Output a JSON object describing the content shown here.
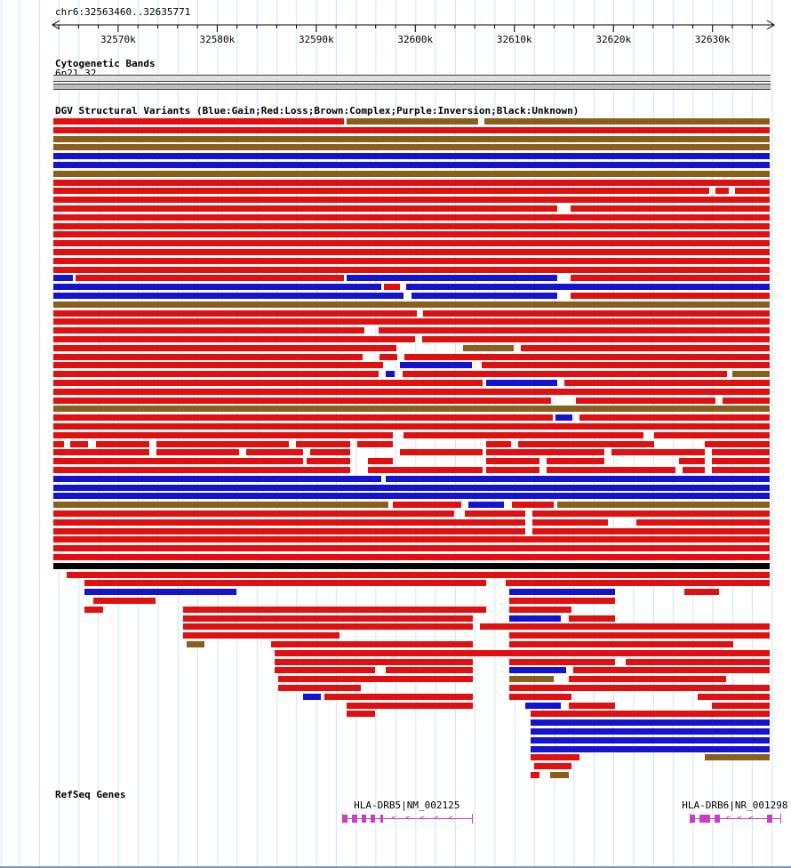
{
  "header": {
    "region": "chr6:32563460..32635771"
  },
  "tracks": {
    "cytoband": {
      "title": "Cytogenetic Bands",
      "band_label": "6p21.32"
    },
    "dgv": {
      "title": "DGV Structural Variants (Blue:Gain;Red:Loss;Brown:Complex;Purple:Inversion;Black:Unknown)"
    },
    "refseq": {
      "title": "RefSeq Genes"
    }
  },
  "colors": {
    "gain": "#1414d0",
    "loss": "#e01010",
    "complex": "#8a5f1e",
    "inversion": "#8800aa",
    "unknown": "#000000",
    "gene": "#c93ec9",
    "grid": "#cfe3f4",
    "band_fill": "#dedede",
    "band_edge": "#3c3c3c",
    "bottom_line": "#7d94cf"
  },
  "chart_data": {
    "type": "genome-tracks",
    "region": {
      "chrom": "chr6",
      "start": 32563460,
      "end": 32635771
    },
    "ruler": {
      "start": 32563460,
      "end": 32635771,
      "major_step": 10000,
      "minor_step": 2000,
      "major_labels": [
        "32570k",
        "32580k",
        "32590k",
        "32600k",
        "32610k",
        "32620k",
        "32630k"
      ]
    },
    "legend": {
      "blue": "Gain",
      "red": "Loss",
      "brown": "Complex",
      "purple": "Inversion",
      "black": "Unknown"
    },
    "rows": [
      [
        [
          0,
          40.6,
          "R"
        ],
        [
          40.9,
          59.3,
          "N"
        ],
        [
          60.2,
          100,
          "N"
        ]
      ],
      [
        [
          0,
          100,
          "R"
        ]
      ],
      [
        [
          0,
          100,
          "N"
        ]
      ],
      [
        [
          0,
          100,
          "N"
        ]
      ],
      [
        [
          0,
          100,
          "B"
        ]
      ],
      [
        [
          0,
          100,
          "B"
        ]
      ],
      [
        [
          0,
          100,
          "N"
        ]
      ],
      [
        [
          0,
          100,
          "R"
        ]
      ],
      [
        [
          0,
          91.6,
          "R"
        ],
        [
          92.4,
          94.3,
          "R"
        ],
        [
          95.1,
          100,
          "R"
        ]
      ],
      [
        [
          0,
          100,
          "R"
        ]
      ],
      [
        [
          0,
          70.3,
          "R"
        ],
        [
          72.2,
          100,
          "R"
        ]
      ],
      [
        [
          0,
          100,
          "R"
        ]
      ],
      [
        [
          0,
          100,
          "R"
        ]
      ],
      [
        [
          0,
          100,
          "R"
        ]
      ],
      [
        [
          0,
          100,
          "R"
        ]
      ],
      [
        [
          0,
          100,
          "R"
        ]
      ],
      [
        [
          0,
          100,
          "R"
        ]
      ],
      [
        [
          0,
          100,
          "R"
        ]
      ],
      [
        [
          0,
          2.7,
          "B"
        ],
        [
          3.1,
          40.6,
          "R"
        ],
        [
          41,
          70.3,
          "B"
        ],
        [
          72.2,
          100,
          "R"
        ]
      ],
      [
        [
          0,
          45.8,
          "B"
        ],
        [
          46.2,
          48.4,
          "R"
        ],
        [
          49.2,
          100,
          "B"
        ]
      ],
      [
        [
          0,
          48.9,
          "B"
        ],
        [
          50,
          70.3,
          "B"
        ],
        [
          72.2,
          100,
          "R"
        ]
      ],
      [
        [
          0,
          100,
          "N"
        ]
      ],
      [
        [
          0,
          50.7,
          "R"
        ],
        [
          51.6,
          100,
          "R"
        ]
      ],
      [
        [
          0,
          100,
          "R"
        ]
      ],
      [
        [
          0,
          43.4,
          "R"
        ],
        [
          45.4,
          100,
          "R"
        ]
      ],
      [
        [
          0,
          50.5,
          "R"
        ],
        [
          51.5,
          100,
          "R"
        ]
      ],
      [
        [
          0,
          47.9,
          "R"
        ],
        [
          57.2,
          64.3,
          "N"
        ],
        [
          65.3,
          100,
          "R"
        ]
      ],
      [
        [
          0,
          43.2,
          "R"
        ],
        [
          45.5,
          48,
          "R"
        ],
        [
          49,
          100,
          "R"
        ]
      ],
      [
        [
          0,
          46,
          "R"
        ],
        [
          48.4,
          58.4,
          "B"
        ],
        [
          59.8,
          100,
          "R"
        ]
      ],
      [
        [
          0,
          45.4,
          "R"
        ],
        [
          46.4,
          47.6,
          "B"
        ],
        [
          48.8,
          94,
          "R"
        ],
        [
          94.8,
          100,
          "N"
        ]
      ],
      [
        [
          0,
          59.9,
          "R"
        ],
        [
          60.4,
          70.4,
          "B"
        ],
        [
          71.4,
          100,
          "R"
        ]
      ],
      [
        [
          0,
          100,
          "R"
        ]
      ],
      [
        [
          0,
          69.5,
          "R"
        ],
        [
          72.9,
          92.4,
          "R"
        ],
        [
          93.4,
          100,
          "R"
        ]
      ],
      [
        [
          0,
          100,
          "N"
        ]
      ],
      [
        [
          0,
          69.7,
          "R"
        ],
        [
          70.1,
          72.4,
          "B"
        ],
        [
          73.4,
          100,
          "R"
        ]
      ],
      [
        [
          0,
          100,
          "R"
        ]
      ],
      [
        [
          0,
          47.4,
          "R"
        ],
        [
          48.9,
          82.4,
          "R"
        ],
        [
          83.9,
          100,
          "R"
        ]
      ],
      [
        [
          0,
          1.5,
          "R"
        ],
        [
          2.4,
          4.9,
          "R"
        ],
        [
          5.9,
          13.4,
          "R"
        ],
        [
          14.4,
          32.9,
          "R"
        ],
        [
          33.9,
          41.4,
          "R"
        ],
        [
          42.4,
          47.4,
          "R"
        ],
        [
          60.4,
          63.9,
          "R"
        ],
        [
          64.9,
          83.9,
          "R"
        ],
        [
          90.9,
          100,
          "R"
        ]
      ],
      [
        [
          0,
          13.4,
          "R"
        ],
        [
          14.4,
          25.9,
          "R"
        ],
        [
          26.9,
          34.9,
          "R"
        ],
        [
          35.9,
          41.4,
          "R"
        ],
        [
          48.4,
          59.9,
          "R"
        ],
        [
          60.4,
          76.9,
          "R"
        ],
        [
          77.9,
          90.9,
          "R"
        ],
        [
          91.9,
          100,
          "R"
        ]
      ],
      [
        [
          0,
          34.9,
          "R"
        ],
        [
          35.4,
          41.4,
          "R"
        ],
        [
          43.9,
          47.4,
          "R"
        ],
        [
          60.4,
          67.9,
          "R"
        ],
        [
          68.9,
          76.9,
          "R"
        ],
        [
          87.4,
          90.9,
          "R"
        ],
        [
          91.9,
          100,
          "R"
        ]
      ],
      [
        [
          0,
          41.4,
          "R"
        ],
        [
          43.9,
          59.9,
          "R"
        ],
        [
          60.4,
          67.9,
          "R"
        ],
        [
          68.9,
          86.9,
          "R"
        ],
        [
          87.9,
          90.9,
          "R"
        ],
        [
          91.9,
          100,
          "R"
        ]
      ],
      [
        [
          0,
          45.8,
          "B"
        ],
        [
          46.4,
          100,
          "B"
        ]
      ],
      [
        [
          0,
          100,
          "B"
        ]
      ],
      [
        [
          0,
          100,
          "B"
        ]
      ],
      [
        [
          0,
          46.8,
          "N"
        ],
        [
          47.4,
          56.9,
          "R"
        ],
        [
          57.9,
          62.9,
          "B"
        ],
        [
          64,
          69.9,
          "R"
        ],
        [
          70.4,
          100,
          "N"
        ]
      ],
      [
        [
          0,
          55.9,
          "R"
        ],
        [
          57.4,
          65.9,
          "R"
        ],
        [
          66.9,
          100,
          "R"
        ]
      ],
      [
        [
          0,
          65.9,
          "R"
        ],
        [
          66.9,
          77.4,
          "R"
        ],
        [
          81.4,
          100,
          "R"
        ]
      ],
      [
        [
          0,
          65.9,
          "R"
        ],
        [
          66.9,
          100,
          "R"
        ]
      ],
      [
        [
          0,
          100,
          "R"
        ]
      ],
      [
        [
          0,
          100,
          "R"
        ]
      ],
      [
        [
          0,
          100,
          "R"
        ]
      ],
      [
        [
          0,
          100,
          "K"
        ]
      ],
      [
        [
          1.9,
          100,
          "R"
        ]
      ],
      [
        [
          4.4,
          60.4,
          "R"
        ],
        [
          63.1,
          100,
          "R"
        ]
      ],
      [
        [
          4.4,
          25.6,
          "B"
        ],
        [
          63.6,
          78.4,
          "B"
        ],
        [
          88.1,
          92.9,
          "R"
        ]
      ],
      [
        [
          5.6,
          14.3,
          "R"
        ],
        [
          63.6,
          78.4,
          "R"
        ]
      ],
      [
        [
          4.4,
          6.9,
          "R"
        ],
        [
          18.1,
          60.4,
          "R"
        ],
        [
          63.6,
          72.3,
          "R"
        ]
      ],
      [
        [
          18.1,
          58.6,
          "R"
        ],
        [
          63.6,
          70.9,
          "B"
        ],
        [
          71.9,
          78.4,
          "R"
        ]
      ],
      [
        [
          18.1,
          58.6,
          "R"
        ],
        [
          59.6,
          100,
          "R"
        ]
      ],
      [
        [
          18.1,
          39.9,
          "R"
        ],
        [
          63.6,
          100,
          "R"
        ]
      ],
      [
        [
          18.6,
          21.1,
          "N"
        ],
        [
          30.4,
          58.6,
          "R"
        ],
        [
          63.6,
          94.9,
          "R"
        ]
      ],
      [
        [
          30.9,
          100,
          "R"
        ]
      ],
      [
        [
          30.9,
          58.6,
          "R"
        ],
        [
          63.6,
          78.4,
          "R"
        ],
        [
          79.9,
          100,
          "R"
        ]
      ],
      [
        [
          30.9,
          44.9,
          "R"
        ],
        [
          46.4,
          58.6,
          "R"
        ],
        [
          63.6,
          71.6,
          "B"
        ],
        [
          72.6,
          100,
          "R"
        ]
      ],
      [
        [
          31.4,
          58.6,
          "R"
        ],
        [
          63.6,
          69.9,
          "N"
        ],
        [
          71.9,
          93.9,
          "R"
        ]
      ],
      [
        [
          31.4,
          42.9,
          "R"
        ],
        [
          63.6,
          100,
          "R"
        ]
      ],
      [
        [
          34.9,
          37.4,
          "B"
        ],
        [
          37.9,
          58.6,
          "R"
        ],
        [
          63.6,
          72.3,
          "R"
        ],
        [
          89.9,
          100,
          "R"
        ]
      ],
      [
        [
          40.9,
          58.6,
          "R"
        ],
        [
          65.9,
          70.9,
          "B"
        ],
        [
          71.9,
          78.4,
          "R"
        ],
        [
          91.9,
          100,
          "R"
        ]
      ],
      [
        [
          40.9,
          44.9,
          "R"
        ],
        [
          66.6,
          100,
          "R"
        ]
      ],
      [
        [
          66.6,
          100,
          "B"
        ]
      ],
      [
        [
          66.6,
          100,
          "B"
        ]
      ],
      [
        [
          66.6,
          100,
          "B"
        ]
      ],
      [
        [
          66.6,
          100,
          "B"
        ]
      ],
      [
        [
          66.6,
          73.4,
          "R"
        ],
        [
          90.9,
          100,
          "N"
        ]
      ],
      [
        [
          67.1,
          72.3,
          "R"
        ]
      ],
      [
        [
          66.6,
          67.9,
          "R"
        ],
        [
          69.4,
          71.9,
          "N"
        ]
      ]
    ],
    "genes": [
      {
        "label": "HLA-DRB5|NM_002125",
        "start_pct": 40.3,
        "end_pct": 58.4,
        "exons": [
          [
            40.3,
            41.1
          ],
          [
            41.7,
            42.4
          ],
          [
            43.1,
            43.7
          ],
          [
            44.3,
            44.9
          ],
          [
            45.6,
            46.0
          ]
        ],
        "chevrons": [
          47.5,
          49.5,
          51.5,
          53.5,
          55.5
        ]
      },
      {
        "label": "HLA-DRB6|NR_001298",
        "start_pct": 88.8,
        "end_pct": 101.5,
        "exons": [
          [
            88.9,
            89.6
          ],
          [
            90.2,
            91.7
          ],
          [
            92.3,
            93.0
          ],
          [
            99.6,
            100.4
          ]
        ],
        "chevrons": [
          94.2,
          95.8,
          97.4
        ]
      }
    ]
  }
}
